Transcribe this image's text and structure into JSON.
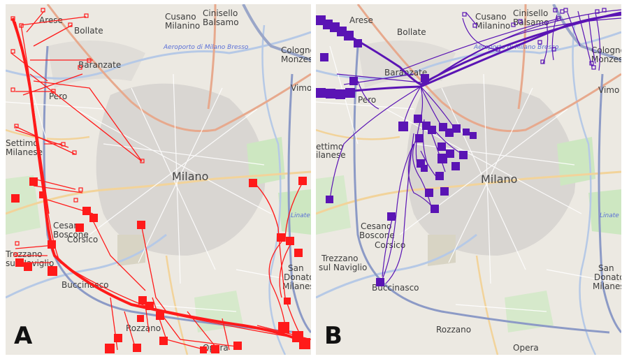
{
  "panels": [
    {
      "letter": "A",
      "track_color": "#ff1a1a",
      "places": [
        "Arese",
        "Bollate",
        "Cusano Milanino",
        "Cinisello Balsamo",
        "Cologno Monzese",
        "Aeroporto di Milano Bresso",
        "Baranzate",
        "Pero",
        "Vimodrone",
        "Settimo Milanese",
        "Milano",
        "Cesano Boscone",
        "Corsico",
        "Trezzano sul Naviglio",
        "Buccinasco",
        "Rozzano",
        "San Donato Milanese",
        "Linate",
        "Opera"
      ]
    },
    {
      "letter": "B",
      "track_color": "#5a14b4",
      "places": [
        "Arese",
        "Bollate",
        "Cusano Milanino",
        "Cinisello Balsamo",
        "Cologno Monzese",
        "Aeroporto di Milano Bresso",
        "Baranzate",
        "Pero",
        "Vimodrone",
        "Settimo Milanese",
        "Milano",
        "Cesano Boscone",
        "Corsico",
        "Trezzano sul Naviglio",
        "Buccinasco",
        "Rozzano",
        "San Donato Milanese",
        "Linate",
        "Opera"
      ]
    }
  ]
}
